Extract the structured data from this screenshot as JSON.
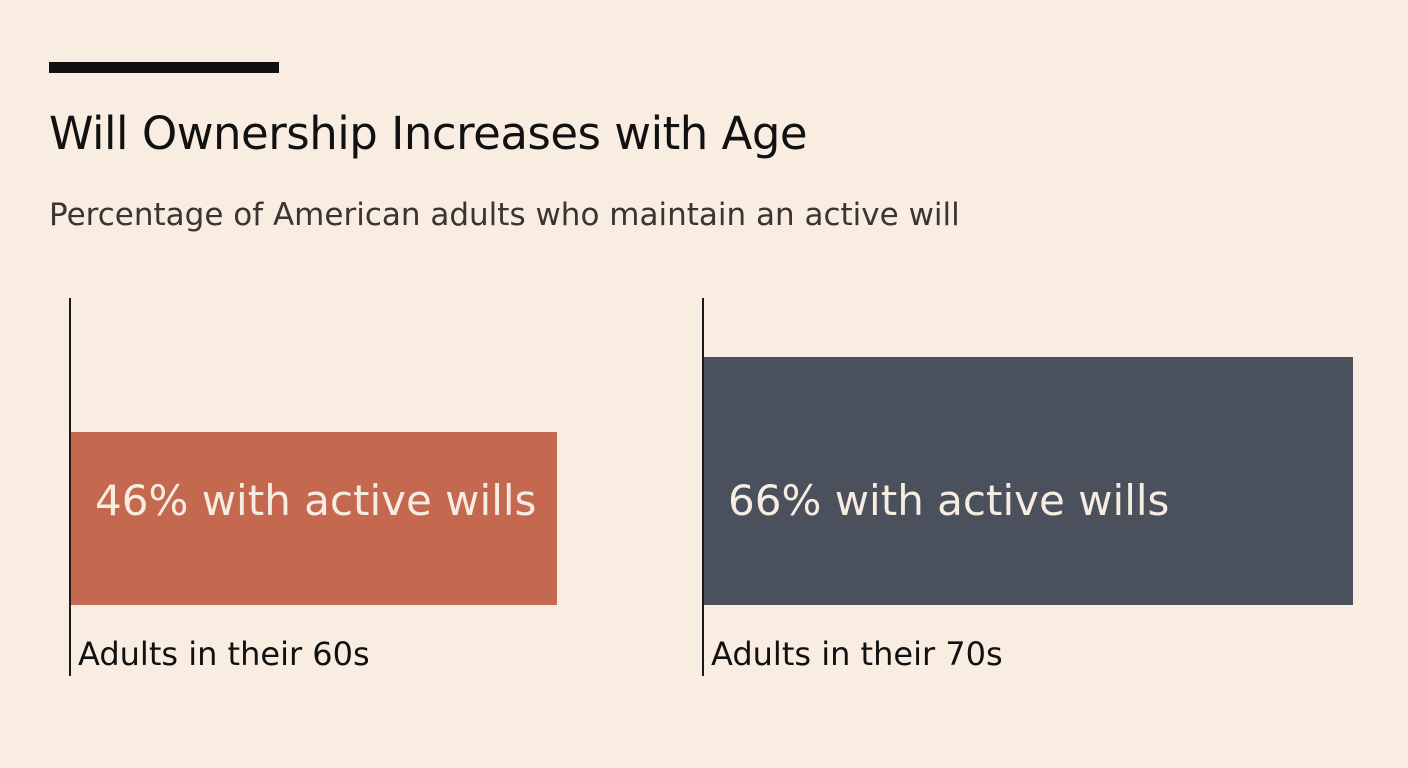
{
  "colors": {
    "background": "#f9ede2",
    "text": "#111111",
    "bar_60s": "#c56850",
    "bar_70s": "#4a505c",
    "bar_label": "#f7ece2"
  },
  "header": {
    "title": "Will Ownership Increases with Age",
    "subtitle": "Percentage of American adults who maintain an active will"
  },
  "chart_data": {
    "type": "bar",
    "title": "Will Ownership Increases with Age",
    "subtitle": "Percentage of American adults who maintain an active will",
    "categories": [
      "Adults in their 60s",
      "Adults in their 70s"
    ],
    "values": [
      46,
      66
    ],
    "data_labels": [
      "46% with active wills",
      "66% with active wills"
    ],
    "colors": [
      "#c56850",
      "#4a505c"
    ],
    "xlabel": "",
    "ylabel": "",
    "grid": false,
    "legend": "none"
  }
}
